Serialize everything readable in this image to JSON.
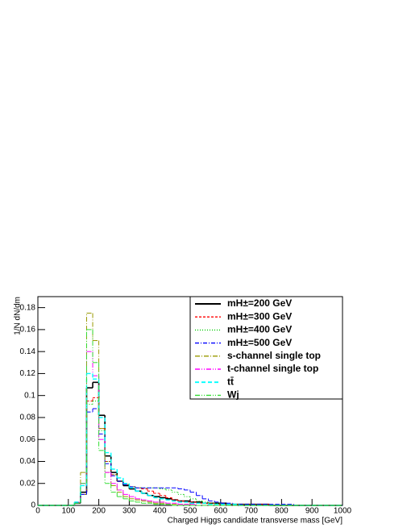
{
  "chart_data": {
    "type": "histogram",
    "x_label": "Charged Higgs candidate transverse mass [GeV]",
    "y_label": "1/N dN/dm",
    "bins": [
      0,
      20,
      40,
      60,
      80,
      100,
      120,
      140,
      160,
      180,
      200,
      220,
      240,
      260,
      280,
      300,
      320,
      340,
      360,
      380,
      400,
      420,
      440,
      460,
      480,
      500,
      520,
      540,
      560,
      580,
      600,
      620,
      640,
      660,
      680,
      700,
      720,
      740,
      760,
      780,
      800,
      820,
      840,
      860,
      880,
      900,
      920,
      940,
      960,
      980,
      1000
    ],
    "xlim": [
      0,
      1000
    ],
    "xticks": [
      0,
      100,
      200,
      300,
      400,
      500,
      600,
      700,
      800,
      900,
      1000
    ],
    "ylim": [
      0,
      0.19
    ],
    "yticks": [
      0,
      0.02,
      0.04,
      0.06,
      0.08,
      0.1,
      0.12,
      0.14,
      0.16,
      0.18
    ],
    "legend": "upper right",
    "series": [
      {
        "name": "mH±=200 GeV",
        "color": "#000000",
        "dash": "none",
        "width": 1.6,
        "values": [
          0,
          0,
          0,
          0,
          0,
          0,
          0.002,
          0.012,
          0.107,
          0.112,
          0.082,
          0.045,
          0.03,
          0.022,
          0.018,
          0.015,
          0.013,
          0.011,
          0.009,
          0.008,
          0.007,
          0.006,
          0.005,
          0.004,
          0.004,
          0.003,
          0.003,
          0.002,
          0.002,
          0.002,
          0.002,
          0.001,
          0.001,
          0.001,
          0.001,
          0.001,
          0.001,
          0.001,
          0,
          0,
          0,
          0,
          0,
          0,
          0,
          0,
          0,
          0,
          0,
          0
        ]
      },
      {
        "name": "mH±=300 GeV",
        "color": "#ff0000",
        "dash": "3,2",
        "width": 1,
        "values": [
          0,
          0,
          0,
          0,
          0,
          0,
          0.002,
          0.01,
          0.095,
          0.098,
          0.07,
          0.04,
          0.028,
          0.022,
          0.019,
          0.017,
          0.016,
          0.015,
          0.013,
          0.011,
          0.009,
          0.007,
          0.005,
          0.004,
          0.003,
          0.003,
          0.002,
          0.002,
          0.002,
          0.001,
          0.001,
          0.001,
          0.001,
          0.001,
          0.001,
          0.001,
          0.001,
          0.001,
          0,
          0,
          0,
          0,
          0,
          0,
          0,
          0,
          0,
          0,
          0,
          0
        ]
      },
      {
        "name": "mH±=400 GeV",
        "color": "#00cc00",
        "dash": "1,2",
        "width": 1,
        "values": [
          0,
          0,
          0,
          0,
          0,
          0,
          0.002,
          0.01,
          0.092,
          0.095,
          0.068,
          0.04,
          0.028,
          0.022,
          0.019,
          0.017,
          0.016,
          0.016,
          0.016,
          0.016,
          0.015,
          0.014,
          0.012,
          0.01,
          0.008,
          0.006,
          0.004,
          0.003,
          0.002,
          0.002,
          0.001,
          0.001,
          0.001,
          0.001,
          0.001,
          0.001,
          0,
          0,
          0,
          0,
          0,
          0,
          0,
          0,
          0,
          0,
          0,
          0,
          0,
          0
        ]
      },
      {
        "name": "mH±=500 GeV",
        "color": "#0000ff",
        "dash": "5,2,1,2",
        "width": 1,
        "values": [
          0,
          0,
          0,
          0,
          0,
          0,
          0.002,
          0.01,
          0.085,
          0.088,
          0.065,
          0.038,
          0.027,
          0.022,
          0.019,
          0.017,
          0.016,
          0.016,
          0.016,
          0.016,
          0.016,
          0.016,
          0.016,
          0.015,
          0.014,
          0.012,
          0.009,
          0.006,
          0.004,
          0.003,
          0.002,
          0.002,
          0.001,
          0.001,
          0.001,
          0.001,
          0.001,
          0.001,
          0.001,
          0.001,
          0.001,
          0.001,
          0,
          0,
          0,
          0,
          0,
          0,
          0,
          0
        ]
      },
      {
        "name": "s-channel single top",
        "color": "#999900",
        "dash": "6,2,1,2",
        "width": 1,
        "values": [
          0,
          0,
          0,
          0,
          0,
          0,
          0.003,
          0.03,
          0.175,
          0.15,
          0.07,
          0.03,
          0.018,
          0.012,
          0.008,
          0.006,
          0.005,
          0.004,
          0.003,
          0.002,
          0.002,
          0.001,
          0.001,
          0.001,
          0.001,
          0,
          0,
          0,
          0,
          0,
          0,
          0,
          0,
          0,
          0,
          0,
          0,
          0,
          0,
          0,
          0,
          0,
          0,
          0,
          0,
          0,
          0,
          0,
          0,
          0
        ]
      },
      {
        "name": "t-channel single top",
        "color": "#ff00ff",
        "dash": "6,2,1,2,1,2",
        "width": 1,
        "values": [
          0,
          0,
          0,
          0,
          0,
          0,
          0.003,
          0.02,
          0.14,
          0.118,
          0.06,
          0.03,
          0.02,
          0.014,
          0.01,
          0.008,
          0.006,
          0.005,
          0.004,
          0.003,
          0.003,
          0.002,
          0.002,
          0.001,
          0.001,
          0.001,
          0,
          0,
          0,
          0,
          0,
          0,
          0,
          0,
          0,
          0,
          0,
          0,
          0,
          0,
          0,
          0,
          0,
          0,
          0,
          0,
          0,
          0,
          0,
          0
        ]
      },
      {
        "name": "tt̄",
        "color": "#00ffff",
        "dash": "5,3",
        "width": 1.4,
        "values": [
          0,
          0,
          0,
          0,
          0,
          0,
          0.003,
          0.018,
          0.12,
          0.115,
          0.08,
          0.048,
          0.033,
          0.025,
          0.02,
          0.016,
          0.013,
          0.011,
          0.009,
          0.007,
          0.006,
          0.005,
          0.004,
          0.003,
          0.003,
          0.002,
          0.002,
          0.002,
          0.001,
          0.001,
          0.001,
          0.001,
          0.001,
          0,
          0,
          0,
          0,
          0,
          0,
          0,
          0,
          0,
          0,
          0,
          0,
          0,
          0,
          0,
          0,
          0
        ]
      },
      {
        "name": "Wj",
        "color": "#33dd33",
        "dash": "6,2,1,2,1,2",
        "width": 1,
        "values": [
          0,
          0,
          0,
          0,
          0,
          0,
          0.002,
          0.02,
          0.16,
          0.13,
          0.05,
          0.02,
          0.012,
          0.008,
          0.006,
          0.004,
          0.003,
          0.002,
          0.002,
          0.001,
          0.001,
          0.001,
          0,
          0,
          0,
          0,
          0,
          0,
          0,
          0,
          0,
          0,
          0,
          0,
          0,
          0,
          0,
          0,
          0,
          0,
          0,
          0,
          0,
          0,
          0,
          0,
          0,
          0,
          0,
          0
        ]
      }
    ]
  }
}
